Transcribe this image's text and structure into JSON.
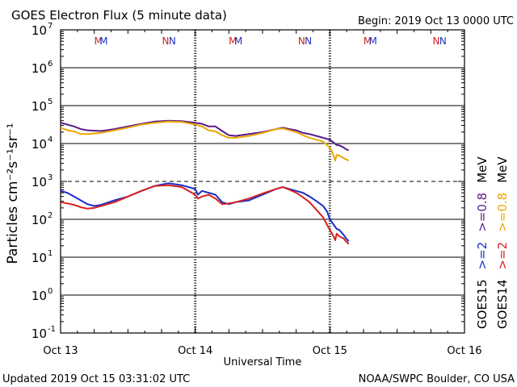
{
  "chart_data": {
    "type": "line",
    "title": "GOES Electron Flux (5 minute data)",
    "begin": "Begin: 2019 Oct 13 0000 UTC",
    "xlabel": "Universal Time",
    "ylabel": "Particles cm⁻²s⁻¹sr⁻¹",
    "x_ticks": [
      "Oct 13",
      "Oct 14",
      "Oct 15",
      "Oct 16"
    ],
    "xlim_days": [
      0,
      3
    ],
    "ylim_log10": [
      -1,
      7
    ],
    "y_ticks": [
      {
        "base": "10",
        "exp": "7"
      },
      {
        "base": "10",
        "exp": "6"
      },
      {
        "base": "10",
        "exp": "5"
      },
      {
        "base": "10",
        "exp": "4"
      },
      {
        "base": "10",
        "exp": "3"
      },
      {
        "base": "10",
        "exp": "2"
      },
      {
        "base": "10",
        "exp": "1"
      },
      {
        "base": "10",
        "exp": "0"
      },
      {
        "base": "10",
        "exp": "-1"
      }
    ],
    "gridlines_log10": [
      6,
      5,
      4,
      2,
      1,
      0
    ],
    "dashed_threshold_log10": 3,
    "mn_markers": [
      {
        "day": 0.28,
        "label": "M",
        "color": "#d02020"
      },
      {
        "day": 0.32,
        "label": "M",
        "color": "#2030c0"
      },
      {
        "day": 0.78,
        "label": "N",
        "color": "#d02020"
      },
      {
        "day": 0.83,
        "label": "N",
        "color": "#2030c0"
      },
      {
        "day": 1.28,
        "label": "M",
        "color": "#d02020"
      },
      {
        "day": 1.32,
        "label": "M",
        "color": "#2030c0"
      },
      {
        "day": 1.79,
        "label": "N",
        "color": "#d02020"
      },
      {
        "day": 1.84,
        "label": "N",
        "color": "#2030c0"
      },
      {
        "day": 2.28,
        "label": "M",
        "color": "#d02020"
      },
      {
        "day": 2.32,
        "label": "M",
        "color": "#2030c0"
      },
      {
        "day": 2.79,
        "label": "N",
        "color": "#d02020"
      },
      {
        "day": 2.84,
        "label": "N",
        "color": "#2030c0"
      }
    ],
    "series": [
      {
        "name": "GOES15 >=0.8 MeV",
        "color": "#5a1a8a",
        "points": [
          [
            0,
            4.55
          ],
          [
            0.05,
            4.5
          ],
          [
            0.1,
            4.45
          ],
          [
            0.15,
            4.38
          ],
          [
            0.2,
            4.35
          ],
          [
            0.3,
            4.33
          ],
          [
            0.4,
            4.38
          ],
          [
            0.5,
            4.45
          ],
          [
            0.6,
            4.52
          ],
          [
            0.7,
            4.58
          ],
          [
            0.8,
            4.6
          ],
          [
            0.9,
            4.59
          ],
          [
            1.0,
            4.55
          ],
          [
            1.05,
            4.52
          ],
          [
            1.1,
            4.45
          ],
          [
            1.15,
            4.45
          ],
          [
            1.2,
            4.33
          ],
          [
            1.25,
            4.22
          ],
          [
            1.3,
            4.2
          ],
          [
            1.4,
            4.25
          ],
          [
            1.5,
            4.3
          ],
          [
            1.6,
            4.38
          ],
          [
            1.65,
            4.42
          ],
          [
            1.7,
            4.38
          ],
          [
            1.75,
            4.35
          ],
          [
            1.8,
            4.28
          ],
          [
            1.85,
            4.25
          ],
          [
            1.9,
            4.2
          ],
          [
            1.95,
            4.15
          ],
          [
            2.0,
            4.1
          ],
          [
            2.03,
            4.02
          ],
          [
            2.05,
            3.96
          ],
          [
            2.07,
            3.95
          ],
          [
            2.1,
            3.9
          ],
          [
            2.12,
            3.85
          ],
          [
            2.14,
            3.82
          ]
        ]
      },
      {
        "name": "GOES14 >=0.8 MeV",
        "color": "#e8a800",
        "points": [
          [
            0,
            4.42
          ],
          [
            0.05,
            4.35
          ],
          [
            0.1,
            4.32
          ],
          [
            0.15,
            4.25
          ],
          [
            0.2,
            4.25
          ],
          [
            0.3,
            4.28
          ],
          [
            0.4,
            4.35
          ],
          [
            0.5,
            4.42
          ],
          [
            0.6,
            4.5
          ],
          [
            0.7,
            4.55
          ],
          [
            0.8,
            4.58
          ],
          [
            0.9,
            4.57
          ],
          [
            1.0,
            4.5
          ],
          [
            1.05,
            4.45
          ],
          [
            1.1,
            4.35
          ],
          [
            1.15,
            4.32
          ],
          [
            1.2,
            4.22
          ],
          [
            1.25,
            4.15
          ],
          [
            1.3,
            4.15
          ],
          [
            1.4,
            4.2
          ],
          [
            1.5,
            4.28
          ],
          [
            1.6,
            4.38
          ],
          [
            1.65,
            4.4
          ],
          [
            1.7,
            4.35
          ],
          [
            1.75,
            4.3
          ],
          [
            1.8,
            4.22
          ],
          [
            1.85,
            4.15
          ],
          [
            1.9,
            4.1
          ],
          [
            1.95,
            4.05
          ],
          [
            1.98,
            3.95
          ],
          [
            2.0,
            3.9
          ],
          [
            2.02,
            3.75
          ],
          [
            2.04,
            3.55
          ],
          [
            2.05,
            3.7
          ],
          [
            2.07,
            3.68
          ],
          [
            2.1,
            3.62
          ],
          [
            2.12,
            3.58
          ],
          [
            2.14,
            3.55
          ]
        ]
      },
      {
        "name": "GOES15 >=2 MeV",
        "color": "#1a2dc8",
        "points": [
          [
            0,
            2.75
          ],
          [
            0.05,
            2.7
          ],
          [
            0.1,
            2.6
          ],
          [
            0.15,
            2.5
          ],
          [
            0.2,
            2.4
          ],
          [
            0.25,
            2.35
          ],
          [
            0.3,
            2.38
          ],
          [
            0.4,
            2.5
          ],
          [
            0.5,
            2.6
          ],
          [
            0.6,
            2.75
          ],
          [
            0.7,
            2.88
          ],
          [
            0.8,
            2.95
          ],
          [
            0.9,
            2.9
          ],
          [
            1.0,
            2.8
          ],
          [
            1.02,
            2.65
          ],
          [
            1.05,
            2.75
          ],
          [
            1.1,
            2.7
          ],
          [
            1.15,
            2.65
          ],
          [
            1.2,
            2.45
          ],
          [
            1.25,
            2.4
          ],
          [
            1.3,
            2.45
          ],
          [
            1.4,
            2.5
          ],
          [
            1.5,
            2.65
          ],
          [
            1.6,
            2.8
          ],
          [
            1.65,
            2.85
          ],
          [
            1.7,
            2.8
          ],
          [
            1.75,
            2.75
          ],
          [
            1.8,
            2.7
          ],
          [
            1.85,
            2.6
          ],
          [
            1.9,
            2.48
          ],
          [
            1.95,
            2.35
          ],
          [
            1.98,
            2.2
          ],
          [
            2.0,
            2.0
          ],
          [
            2.03,
            1.85
          ],
          [
            2.05,
            1.75
          ],
          [
            2.07,
            1.72
          ],
          [
            2.1,
            1.6
          ],
          [
            2.12,
            1.5
          ],
          [
            2.14,
            1.42
          ]
        ]
      },
      {
        "name": "GOES14 >=2 MeV",
        "color": "#d82020",
        "points": [
          [
            0,
            2.45
          ],
          [
            0.05,
            2.42
          ],
          [
            0.1,
            2.38
          ],
          [
            0.15,
            2.32
          ],
          [
            0.2,
            2.28
          ],
          [
            0.25,
            2.3
          ],
          [
            0.3,
            2.35
          ],
          [
            0.4,
            2.45
          ],
          [
            0.5,
            2.6
          ],
          [
            0.6,
            2.75
          ],
          [
            0.7,
            2.88
          ],
          [
            0.8,
            2.9
          ],
          [
            0.9,
            2.85
          ],
          [
            1.0,
            2.65
          ],
          [
            1.02,
            2.55
          ],
          [
            1.05,
            2.6
          ],
          [
            1.1,
            2.65
          ],
          [
            1.15,
            2.55
          ],
          [
            1.2,
            2.4
          ],
          [
            1.25,
            2.42
          ],
          [
            1.3,
            2.45
          ],
          [
            1.4,
            2.55
          ],
          [
            1.5,
            2.68
          ],
          [
            1.6,
            2.8
          ],
          [
            1.65,
            2.85
          ],
          [
            1.7,
            2.78
          ],
          [
            1.75,
            2.7
          ],
          [
            1.8,
            2.58
          ],
          [
            1.85,
            2.45
          ],
          [
            1.9,
            2.25
          ],
          [
            1.95,
            2.05
          ],
          [
            1.98,
            1.85
          ],
          [
            2.0,
            1.72
          ],
          [
            2.02,
            1.6
          ],
          [
            2.04,
            1.45
          ],
          [
            2.05,
            1.62
          ],
          [
            2.07,
            1.55
          ],
          [
            2.1,
            1.5
          ],
          [
            2.12,
            1.42
          ],
          [
            2.14,
            1.35
          ]
        ]
      }
    ],
    "right_labels": [
      {
        "text": "GOES15   >=2   >=0.8  MeV",
        "parts": [
          {
            "text": "GOES15",
            "color": "#000000"
          },
          {
            "text": ">=2",
            "color": "#1a2dc8"
          },
          {
            "text": ">=0.8",
            "color": "#5a1a8a"
          },
          {
            "text": "MeV",
            "color": "#000000"
          }
        ]
      },
      {
        "text": "GOES14   >=2   >=0.8  MeV",
        "parts": [
          {
            "text": "GOES14",
            "color": "#000000"
          },
          {
            "text": ">=2",
            "color": "#d82020"
          },
          {
            "text": ">=0.8",
            "color": "#e8a800"
          },
          {
            "text": "MeV",
            "color": "#000000"
          }
        ]
      }
    ]
  },
  "footer": {
    "updated": "Updated 2019 Oct 15 03:31:02 UTC",
    "credit": "NOAA/SWPC Boulder, CO USA"
  }
}
